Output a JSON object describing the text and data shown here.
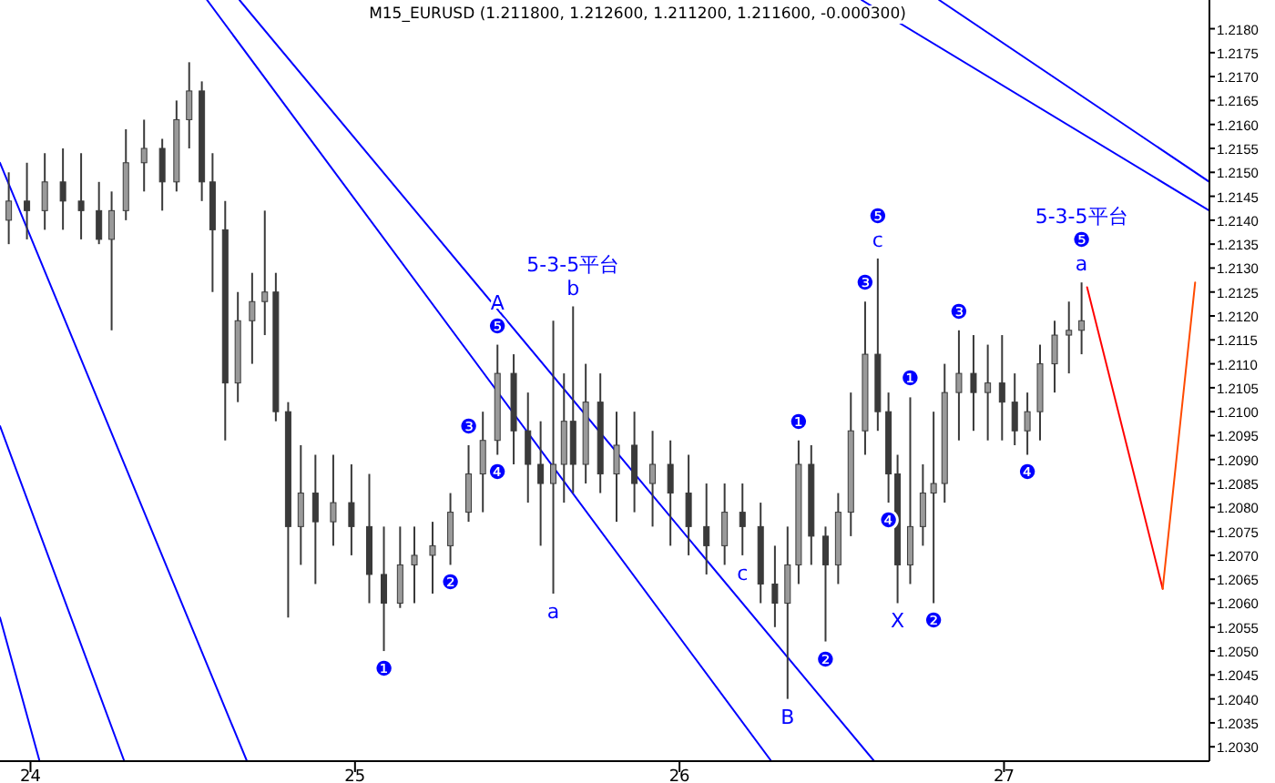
{
  "chart_data": {
    "type": "candlestick",
    "title": "M15_EURUSD (1.211800, 1.212600, 1.211200, 1.211600, -0.000300)",
    "xlim": [
      23.906,
      27.633
    ],
    "ylim": [
      1.2027,
      1.2186
    ],
    "xticks": [
      24,
      25,
      26,
      27
    ],
    "yticks": [
      {
        "value": 1.203,
        "label": "1.2030"
      },
      {
        "value": 1.2035,
        "label": "1.2035"
      },
      {
        "value": 1.204,
        "label": "1.2040"
      },
      {
        "value": 1.2045,
        "label": "1.2045"
      },
      {
        "value": 1.205,
        "label": "1.2050"
      },
      {
        "value": 1.2055,
        "label": "1.2055"
      },
      {
        "value": 1.206,
        "label": "1.2060"
      },
      {
        "value": 1.2065,
        "label": "1.2065"
      },
      {
        "value": 1.207,
        "label": "1.2070"
      },
      {
        "value": 1.2075,
        "label": "1.2075"
      },
      {
        "value": 1.208,
        "label": "1.2080"
      },
      {
        "value": 1.2085,
        "label": "1.2085"
      },
      {
        "value": 1.209,
        "label": "1.2090"
      },
      {
        "value": 1.2095,
        "label": "1.2095"
      },
      {
        "value": 1.21,
        "label": "1.2100"
      },
      {
        "value": 1.2105,
        "label": "1.2105"
      },
      {
        "value": 1.211,
        "label": "1.2110"
      },
      {
        "value": 1.2115,
        "label": "1.2115"
      },
      {
        "value": 1.212,
        "label": "1.2120"
      },
      {
        "value": 1.2125,
        "label": "1.2125"
      },
      {
        "value": 1.213,
        "label": "1.2130"
      },
      {
        "value": 1.2135,
        "label": "1.2135"
      },
      {
        "value": 1.214,
        "label": "1.2140"
      },
      {
        "value": 1.2145,
        "label": "1.2145"
      },
      {
        "value": 1.215,
        "label": "1.2150"
      },
      {
        "value": 1.2155,
        "label": "1.2155"
      },
      {
        "value": 1.216,
        "label": "1.2160"
      },
      {
        "value": 1.2165,
        "label": "1.2165"
      },
      {
        "value": 1.217,
        "label": "1.2170"
      },
      {
        "value": 1.2175,
        "label": "1.2175"
      },
      {
        "value": 1.218,
        "label": "1.2180"
      }
    ],
    "grid": false,
    "series": [
      {
        "color": "#3a3a3a",
        "x": [
          23.933,
          23.989,
          24.044,
          24.1,
          24.156,
          24.211,
          24.25,
          24.294,
          24.35,
          24.406,
          24.45,
          24.489,
          24.528,
          24.561,
          24.6,
          24.639,
          24.683,
          24.722,
          24.756,
          24.794,
          24.833,
          24.878,
          24.933,
          24.989,
          25.044,
          25.089,
          25.139,
          25.183,
          25.239,
          25.294,
          25.35,
          25.394,
          25.439,
          25.489,
          25.533,
          25.572,
          25.611,
          25.644,
          25.672,
          25.711,
          25.756,
          25.806,
          25.861,
          25.917,
          25.972,
          26.028,
          26.083,
          26.139,
          26.194,
          26.25,
          26.294,
          26.333,
          26.367,
          26.406,
          26.45,
          26.489,
          26.528,
          26.572,
          26.611,
          26.644,
          26.672,
          26.711,
          26.75,
          26.783,
          26.817,
          26.861,
          26.906,
          26.95,
          26.994,
          27.033,
          27.072,
          27.111,
          27.156,
          27.2,
          27.239
        ],
        "ohlc": [
          [
            1.214,
            1.215,
            1.2135,
            1.2144
          ],
          [
            1.2144,
            1.2152,
            1.2136,
            1.2142
          ],
          [
            1.2142,
            1.2154,
            1.2138,
            1.2148
          ],
          [
            1.2148,
            1.2155,
            1.2138,
            1.2144
          ],
          [
            1.2144,
            1.2154,
            1.2136,
            1.2142
          ],
          [
            1.2142,
            1.2148,
            1.2135,
            1.2136
          ],
          [
            1.2136,
            1.2146,
            1.2117,
            1.2142
          ],
          [
            1.2142,
            1.2159,
            1.214,
            1.2152
          ],
          [
            1.2152,
            1.2161,
            1.2146,
            1.2155
          ],
          [
            1.2155,
            1.2157,
            1.2142,
            1.2148
          ],
          [
            1.2148,
            1.2165,
            1.2146,
            1.2161
          ],
          [
            1.2161,
            1.2173,
            1.2155,
            1.2167
          ],
          [
            1.2167,
            1.2169,
            1.2144,
            1.2148
          ],
          [
            1.2148,
            1.2154,
            1.2125,
            1.2138
          ],
          [
            1.2138,
            1.2144,
            1.2094,
            1.2106
          ],
          [
            1.2106,
            1.2125,
            1.2102,
            1.2119
          ],
          [
            1.2119,
            1.2129,
            1.211,
            1.2123
          ],
          [
            1.2123,
            1.2142,
            1.2116,
            1.2125
          ],
          [
            1.2125,
            1.2129,
            1.2098,
            1.21
          ],
          [
            1.21,
            1.2102,
            1.2057,
            1.2076
          ],
          [
            1.2076,
            1.2093,
            1.2068,
            1.2083
          ],
          [
            1.2083,
            1.2091,
            1.2064,
            1.2077
          ],
          [
            1.2077,
            1.2091,
            1.2072,
            1.2081
          ],
          [
            1.2081,
            1.2089,
            1.207,
            1.2076
          ],
          [
            1.2076,
            1.2087,
            1.206,
            1.2066
          ],
          [
            1.2066,
            1.2076,
            1.205,
            1.206
          ],
          [
            1.206,
            1.2076,
            1.2059,
            1.2068
          ],
          [
            1.2068,
            1.2076,
            1.206,
            1.207
          ],
          [
            1.207,
            1.2077,
            1.2062,
            1.2072
          ],
          [
            1.2072,
            1.2083,
            1.2068,
            1.2079
          ],
          [
            1.2079,
            1.2093,
            1.2077,
            1.2087
          ],
          [
            1.2087,
            1.21,
            1.2079,
            1.2094
          ],
          [
            1.2094,
            1.2114,
            1.2091,
            1.2108
          ],
          [
            1.2108,
            1.2112,
            1.2089,
            1.2096
          ],
          [
            1.2096,
            1.2104,
            1.2081,
            1.2089
          ],
          [
            1.2089,
            1.2098,
            1.2072,
            1.2085
          ],
          [
            1.2085,
            1.2119,
            1.2062,
            1.2089
          ],
          [
            1.2089,
            1.2108,
            1.2081,
            1.2098
          ],
          [
            1.2098,
            1.2122,
            1.2083,
            1.2089
          ],
          [
            1.2089,
            1.211,
            1.2085,
            1.2102
          ],
          [
            1.2102,
            1.2108,
            1.2083,
            1.2087
          ],
          [
            1.2087,
            1.21,
            1.2077,
            1.2093
          ],
          [
            1.2093,
            1.21,
            1.2079,
            1.2085
          ],
          [
            1.2085,
            1.2096,
            1.2076,
            1.2089
          ],
          [
            1.2089,
            1.2094,
            1.2072,
            1.2083
          ],
          [
            1.2083,
            1.2091,
            1.207,
            1.2076
          ],
          [
            1.2076,
            1.2085,
            1.2066,
            1.2072
          ],
          [
            1.2072,
            1.2085,
            1.2068,
            1.2079
          ],
          [
            1.2079,
            1.2085,
            1.207,
            1.2076
          ],
          [
            1.2076,
            1.2081,
            1.206,
            1.2064
          ],
          [
            1.2064,
            1.2072,
            1.2055,
            1.206
          ],
          [
            1.206,
            1.2076,
            1.204,
            1.2068
          ],
          [
            1.2068,
            1.2094,
            1.2064,
            1.2089
          ],
          [
            1.2089,
            1.2093,
            1.2068,
            1.2074
          ],
          [
            1.2074,
            1.2076,
            1.2052,
            1.2068
          ],
          [
            1.2068,
            1.2083,
            1.2064,
            1.2079
          ],
          [
            1.2079,
            1.2104,
            1.2074,
            1.2096
          ],
          [
            1.2096,
            1.2123,
            1.2091,
            1.2112
          ],
          [
            1.2112,
            1.2132,
            1.2096,
            1.21
          ],
          [
            1.21,
            1.2104,
            1.2081,
            1.2087
          ],
          [
            1.2087,
            1.2091,
            1.206,
            1.2068
          ],
          [
            1.2068,
            1.2103,
            1.2064,
            1.2076
          ],
          [
            1.2076,
            1.2089,
            1.2072,
            1.2083
          ],
          [
            1.2083,
            1.21,
            1.206,
            1.2085
          ],
          [
            1.2085,
            1.211,
            1.2081,
            1.2104
          ],
          [
            1.2104,
            1.2117,
            1.2094,
            1.2108
          ],
          [
            1.2108,
            1.2116,
            1.2096,
            1.2104
          ],
          [
            1.2104,
            1.2114,
            1.2094,
            1.2106
          ],
          [
            1.2106,
            1.2116,
            1.2094,
            1.2102
          ],
          [
            1.2102,
            1.2108,
            1.2093,
            1.2096
          ],
          [
            1.2096,
            1.2104,
            1.2091,
            1.21
          ],
          [
            1.21,
            1.2114,
            1.2094,
            1.211
          ],
          [
            1.211,
            1.2119,
            1.2104,
            1.2116
          ],
          [
            1.2116,
            1.2123,
            1.2108,
            1.2117
          ],
          [
            1.2117,
            1.2127,
            1.2112,
            1.2119
          ]
        ]
      },
      {
        "type": "line",
        "color": "#0000ff",
        "x": [
          24.644,
          26.6
        ],
        "values": [
          1.2186,
          1.2027
        ]
      },
      {
        "type": "line",
        "color": "#0000ff",
        "x": [
          24.544,
          26.283
        ],
        "values": [
          1.2186,
          1.2027
        ]
      },
      {
        "type": "line",
        "color": "#0000ff",
        "x": [
          23.906,
          24.667
        ],
        "values": [
          1.2152,
          1.2027
        ]
      },
      {
        "type": "line",
        "color": "#0000ff",
        "x": [
          23.906,
          24.289
        ],
        "values": [
          1.2097,
          1.2027
        ]
      },
      {
        "type": "line",
        "color": "#0000ff",
        "x": [
          23.906,
          24.028
        ],
        "values": [
          1.2057,
          1.2027
        ]
      },
      {
        "type": "line",
        "color": "#0000ff",
        "x": [
          26.561,
          27.633
        ],
        "values": [
          1.2186,
          1.2142
        ]
      },
      {
        "type": "line",
        "color": "#0000ff",
        "x": [
          26.8,
          27.633
        ],
        "values": [
          1.2186,
          1.2148
        ]
      },
      {
        "type": "line",
        "color": "#ff0000",
        "x": [
          27.256,
          27.489
        ],
        "values": [
          1.2126,
          1.2063
        ]
      },
      {
        "type": "line",
        "color": "#ff4a00",
        "x": [
          27.489,
          27.589
        ],
        "values": [
          1.2063,
          1.2127
        ]
      }
    ],
    "annotations": [
      {
        "text": "❶",
        "x": 25.089,
        "y": 1.205
      },
      {
        "text": "❷",
        "x": 25.294,
        "y": 1.2068
      },
      {
        "text": "❸",
        "x": 25.35,
        "y": 1.2093
      },
      {
        "text": "❹",
        "x": 25.439,
        "y": 1.2091
      },
      {
        "text": "❺",
        "x": 25.439,
        "y": 1.2114
      },
      {
        "text": "A",
        "x": 25.439,
        "y": 1.2114
      },
      {
        "text": "b",
        "x": 25.672,
        "y": 1.2122
      },
      {
        "text": "5-3-5平台",
        "x": 25.672,
        "y": 1.2122
      },
      {
        "text": "a",
        "x": 25.611,
        "y": 1.2062
      },
      {
        "text": "c",
        "x": 26.194,
        "y": 1.207
      },
      {
        "text": "B",
        "x": 26.333,
        "y": 1.204
      },
      {
        "text": "❶",
        "x": 26.367,
        "y": 1.2094
      },
      {
        "text": "❷",
        "x": 26.45,
        "y": 1.2052
      },
      {
        "text": "❸",
        "x": 26.572,
        "y": 1.2123
      },
      {
        "text": "c",
        "x": 26.611,
        "y": 1.2132
      },
      {
        "text": "❺",
        "x": 26.611,
        "y": 1.2132
      },
      {
        "text": "❹",
        "x": 26.644,
        "y": 1.2081
      },
      {
        "text": "❶",
        "x": 26.711,
        "y": 1.2103
      },
      {
        "text": "X",
        "x": 26.672,
        "y": 1.206
      },
      {
        "text": "❷",
        "x": 26.783,
        "y": 1.206
      },
      {
        "text": "❸",
        "x": 26.861,
        "y": 1.2117
      },
      {
        "text": "❹",
        "x": 27.072,
        "y": 1.2091
      },
      {
        "text": "a",
        "x": 27.239,
        "y": 1.2127
      },
      {
        "text": "❺",
        "x": 27.239,
        "y": 1.2127
      },
      {
        "text": "5-3-5平台",
        "x": 27.239,
        "y": 1.2127
      }
    ]
  }
}
